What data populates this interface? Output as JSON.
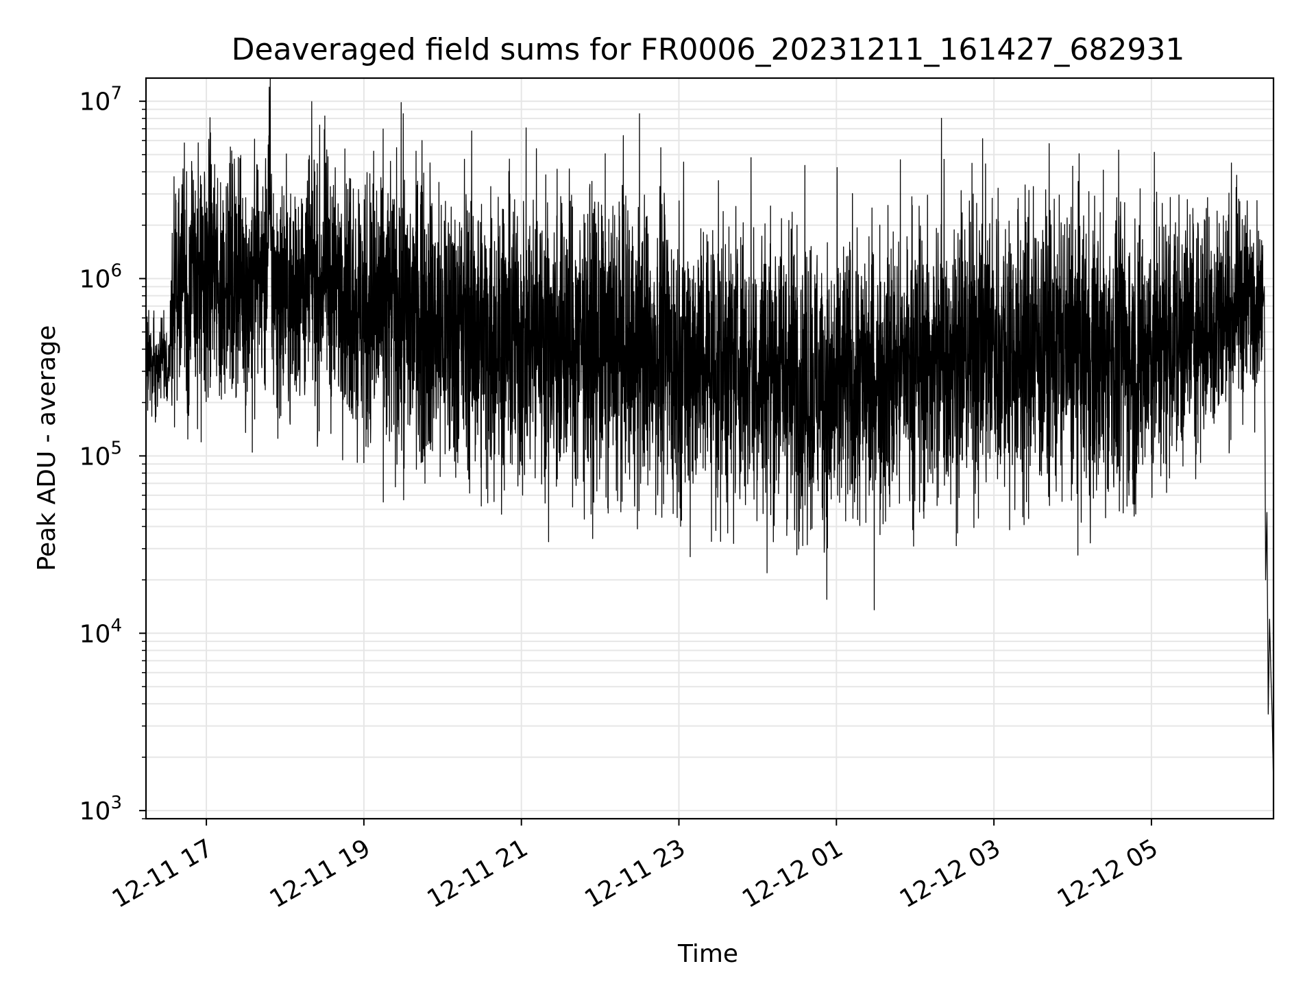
{
  "chart_data": {
    "type": "line",
    "title": "Deaveraged field sums for FR0006_20231211_161427_682931",
    "xlabel": "Time",
    "ylabel": "Peak ADU - average",
    "yscale": "log",
    "ylim": [
      900,
      13500000
    ],
    "xlim": [
      "2023-12-11 16:14",
      "2023-12-12 06:33"
    ],
    "grid": true,
    "line_color": "#000000",
    "grid_color": "#e6e6e6",
    "x_ticks": [
      {
        "value": "2023-12-11 17:00",
        "label": "12-11 17"
      },
      {
        "value": "2023-12-11 19:00",
        "label": "12-11 19"
      },
      {
        "value": "2023-12-11 21:00",
        "label": "12-11 21"
      },
      {
        "value": "2023-12-11 23:00",
        "label": "12-11 23"
      },
      {
        "value": "2023-12-12 01:00",
        "label": "12-12 01"
      },
      {
        "value": "2023-12-12 03:00",
        "label": "12-12 03"
      },
      {
        "value": "2023-12-12 05:00",
        "label": "12-12 05"
      }
    ],
    "y_ticks": [
      {
        "value": 1000,
        "base": "10",
        "exp": "3"
      },
      {
        "value": 10000,
        "base": "10",
        "exp": "4"
      },
      {
        "value": 100000,
        "base": "10",
        "exp": "5"
      },
      {
        "value": 1000000,
        "base": "10",
        "exp": "6"
      },
      {
        "value": 10000000,
        "base": "10",
        "exp": "7"
      }
    ],
    "series": [
      {
        "x": [
          "2023-12-11 16:14",
          "2023-12-11 16:17",
          "2023-12-11 16:20",
          "2023-12-11 16:23",
          "2023-12-11 16:26",
          "2023-12-11 16:29",
          "2023-12-11 16:32",
          "2023-12-11 16:36",
          "2023-12-11 16:40",
          "2023-12-11 16:43",
          "2023-12-11 16:46",
          "2023-12-11 16:50",
          "2023-12-11 16:55",
          "2023-12-11 17:00",
          "2023-12-11 17:05",
          "2023-12-11 17:10",
          "2023-12-11 17:15",
          "2023-12-11 17:20",
          "2023-12-11 17:25",
          "2023-12-11 17:30",
          "2023-12-11 17:35",
          "2023-12-11 17:40",
          "2023-12-11 17:45",
          "2023-12-11 17:48",
          "2023-12-11 17:50",
          "2023-12-11 17:55",
          "2023-12-11 18:00",
          "2023-12-11 18:05",
          "2023-12-11 18:10",
          "2023-12-11 18:15",
          "2023-12-11 18:20",
          "2023-12-11 18:25",
          "2023-12-11 18:30",
          "2023-12-11 18:35",
          "2023-12-11 18:40",
          "2023-12-11 18:45",
          "2023-12-11 18:50",
          "2023-12-11 18:55",
          "2023-12-11 19:00",
          "2023-12-11 19:10",
          "2023-12-11 19:20",
          "2023-12-11 19:30",
          "2023-12-11 19:40",
          "2023-12-11 19:50",
          "2023-12-11 20:00",
          "2023-12-11 20:15",
          "2023-12-11 20:30",
          "2023-12-11 20:45",
          "2023-12-11 21:00",
          "2023-12-11 21:15",
          "2023-12-11 21:30",
          "2023-12-11 21:45",
          "2023-12-11 22:00",
          "2023-12-11 22:15",
          "2023-12-11 22:30",
          "2023-12-11 22:45",
          "2023-12-11 23:00",
          "2023-12-11 23:15",
          "2023-12-11 23:30",
          "2023-12-11 23:45",
          "2023-12-12 00:00",
          "2023-12-12 00:15",
          "2023-12-12 00:30",
          "2023-12-12 00:45",
          "2023-12-12 01:00",
          "2023-12-12 01:15",
          "2023-12-12 01:30",
          "2023-12-12 01:45",
          "2023-12-12 02:00",
          "2023-12-12 02:15",
          "2023-12-12 02:30",
          "2023-12-12 02:45",
          "2023-12-12 03:00",
          "2023-12-12 03:15",
          "2023-12-12 03:30",
          "2023-12-12 03:45",
          "2023-12-12 04:00",
          "2023-12-12 04:15",
          "2023-12-12 04:30",
          "2023-12-12 04:45",
          "2023-12-12 05:00",
          "2023-12-12 05:15",
          "2023-12-12 05:30",
          "2023-12-12 05:45",
          "2023-12-12 06:00",
          "2023-12-12 06:10",
          "2023-12-12 06:20",
          "2023-12-12 06:25",
          "2023-12-12 06:26",
          "2023-12-12 06:27",
          "2023-12-12 06:28",
          "2023-12-12 06:29",
          "2023-12-12 06:30",
          "2023-12-12 06:31",
          "2023-12-12 06:32",
          "2023-12-12 06:33"
        ],
        "y": [
          400000,
          310000,
          380000,
          270000,
          360000,
          300000,
          340000,
          1000000,
          900000,
          1500000,
          600000,
          1200000,
          800000,
          1000000,
          1300000,
          700000,
          1200000,
          900000,
          1100000,
          800000,
          1000000,
          1200000,
          900000,
          3500000,
          1000000,
          800000,
          900000,
          700000,
          1000000,
          850000,
          1100000,
          800000,
          1200000,
          900000,
          850000,
          1000000,
          700000,
          800000,
          600000,
          650000,
          700000,
          550000,
          650000,
          600000,
          500000,
          550000,
          450000,
          500000,
          450000,
          500000,
          420000,
          450000,
          400000,
          420000,
          380000,
          400000,
          350000,
          380000,
          320000,
          350000,
          300000,
          320000,
          280000,
          250000,
          230000,
          250000,
          280000,
          300000,
          350000,
          320000,
          380000,
          400000,
          420000,
          380000,
          400000,
          420000,
          400000,
          350000,
          380000,
          350000,
          400000,
          450000,
          500000,
          550000,
          650000,
          750000,
          800000,
          700000,
          900000,
          20000,
          48000,
          3500,
          12000,
          6000,
          3400,
          1400
        ],
        "noise_amp": [
          0.22,
          0.22,
          0.22,
          0.22,
          0.22,
          0.22,
          0.22,
          0.55,
          0.6,
          0.6,
          0.6,
          0.65,
          0.65,
          0.65,
          0.6,
          0.6,
          0.6,
          0.6,
          0.6,
          0.6,
          0.6,
          0.6,
          0.6,
          0.6,
          0.6,
          0.6,
          0.6,
          0.6,
          0.6,
          0.6,
          0.6,
          0.6,
          0.6,
          0.6,
          0.6,
          0.6,
          0.65,
          0.7,
          0.75,
          0.75,
          0.75,
          0.75,
          0.75,
          0.75,
          0.75,
          0.75,
          0.75,
          0.75,
          0.75,
          0.75,
          0.75,
          0.75,
          0.75,
          0.75,
          0.75,
          0.75,
          0.75,
          0.75,
          0.75,
          0.75,
          0.75,
          0.75,
          0.75,
          0.75,
          0.75,
          0.75,
          0.75,
          0.75,
          0.75,
          0.75,
          0.75,
          0.75,
          0.75,
          0.75,
          0.75,
          0.75,
          0.75,
          0.75,
          0.75,
          0.75,
          0.75,
          0.7,
          0.65,
          0.6,
          0.55,
          0.5,
          0.45,
          0.3,
          0.1,
          0.1,
          0.1,
          0.1,
          0.1,
          0.1,
          0.1,
          0.1
        ]
      }
    ],
    "spikes": [
      {
        "x": "2023-12-11 16:34",
        "y": 1800000
      },
      {
        "x": "2023-12-11 16:39",
        "y": 2900000
      },
      {
        "x": "2023-12-11 16:45",
        "y": 4000000
      },
      {
        "x": "2023-12-11 17:00",
        "y": 2700000
      },
      {
        "x": "2023-12-11 17:20",
        "y": 2500000
      },
      {
        "x": "2023-12-11 17:48",
        "y": 6500000
      },
      {
        "x": "2023-12-11 18:30",
        "y": 4300000
      },
      {
        "x": "2023-12-11 18:52",
        "y": 3200000
      },
      {
        "x": "2023-12-11 19:30",
        "y": 8500000
      },
      {
        "x": "2023-12-11 22:30",
        "y": 8500000
      },
      {
        "x": "2023-12-11 23:55",
        "y": 4800000
      },
      {
        "x": "2023-12-12 00:30",
        "y": 2000000
      },
      {
        "x": "2023-12-12 02:20",
        "y": 8000000
      },
      {
        "x": "2023-12-12 02:22",
        "y": 4700000
      },
      {
        "x": "2023-12-12 03:30",
        "y": 3300000
      },
      {
        "x": "2023-12-12 04:00",
        "y": 4300000
      },
      {
        "x": "2023-12-12 04:35",
        "y": 5300000
      },
      {
        "x": "2023-12-12 05:50",
        "y": 2400000
      }
    ],
    "dips": [
      {
        "x": "2023-12-11 16:56",
        "y": 120000
      },
      {
        "x": "2023-12-11 17:35",
        "y": 105000
      },
      {
        "x": "2023-12-11 18:55",
        "y": 92000
      },
      {
        "x": "2023-12-11 19:40",
        "y": 84000
      },
      {
        "x": "2023-12-11 21:20",
        "y": 120000
      },
      {
        "x": "2023-12-11 22:55",
        "y": 82000
      },
      {
        "x": "2023-12-11 23:40",
        "y": 80000
      },
      {
        "x": "2023-12-12 00:55",
        "y": 74000
      },
      {
        "x": "2023-12-12 01:25",
        "y": 60000
      },
      {
        "x": "2023-12-12 01:40",
        "y": 68000
      },
      {
        "x": "2023-12-12 04:15",
        "y": 95000
      },
      {
        "x": "2023-12-12 05:00",
        "y": 105000
      }
    ]
  }
}
